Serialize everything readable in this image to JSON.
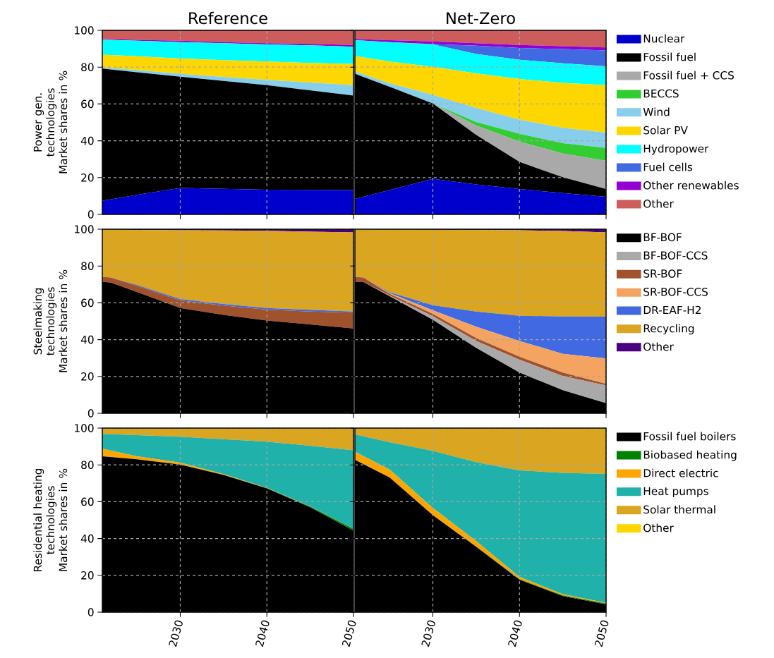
{
  "chart_data": [
    {
      "type": "area",
      "stacked": true,
      "title": "Reference",
      "ylabel": "Power gen. technologies Market shares in %",
      "x": [
        2021,
        2025,
        2030,
        2035,
        2040,
        2045,
        2050
      ],
      "xlim": [
        2021,
        2050
      ],
      "ylim": [
        0,
        100
      ],
      "xticks": [
        2030,
        2040,
        2050
      ],
      "yticks": [
        0,
        20,
        40,
        60,
        80,
        100
      ],
      "grid": true,
      "tick_labels": "y",
      "series": [
        {
          "color": "#0000cd",
          "values": [
            7.4,
            10.6,
            14.4,
            13.9,
            13.4,
            13.3,
            13.2
          ]
        },
        {
          "color": "#000000",
          "values": [
            71.8,
            66.6,
            60.4,
            58.6,
            56.8,
            54.1,
            51.4
          ]
        },
        {
          "color": "#87ceeb",
          "values": [
            0.7,
            1.2,
            1.6,
            2.2,
            2.9,
            4.2,
            5.6
          ]
        },
        {
          "color": "#ffd700",
          "values": [
            6.9,
            7.5,
            8.3,
            9.1,
            9.9,
            10.7,
            11.5
          ]
        },
        {
          "color": "#00ffff",
          "values": [
            8.1,
            8.4,
            8.9,
            9.2,
            9.3,
            9.6,
            9.4
          ]
        },
        {
          "color": "#9400d3",
          "values": [
            0.4,
            0.5,
            0.7,
            0.6,
            0.7,
            0.7,
            0.9
          ]
        },
        {
          "color": "#cd5c5c",
          "values": [
            4.7,
            5.2,
            5.7,
            6.4,
            7.0,
            7.4,
            8.0
          ]
        }
      ]
    },
    {
      "type": "area",
      "stacked": true,
      "title": "Net-Zero",
      "x": [
        2021,
        2025,
        2030,
        2035,
        2040,
        2045,
        2050
      ],
      "xlim": [
        2021,
        2050
      ],
      "ylim": [
        0,
        100
      ],
      "xticks": [
        2030,
        2040,
        2050
      ],
      "yticks": [
        0,
        20,
        40,
        60,
        80,
        100
      ],
      "grid": true,
      "tick_labels": false,
      "legend": "right",
      "series": [
        {
          "name": "Nuclear",
          "color": "#0000cd",
          "values": [
            8.4,
            13.2,
            19.3,
            16.3,
            13.8,
            11.6,
            9.6
          ]
        },
        {
          "name": "Fossil fuel",
          "color": "#000000",
          "values": [
            68.0,
            56.1,
            40.9,
            26.9,
            14.7,
            8.6,
            4.2
          ]
        },
        {
          "name": "Fossil fuel + CCS",
          "color": "#a9a9a9",
          "values": [
            0,
            0,
            0,
            5.1,
            11.1,
            12.8,
            15.3
          ]
        },
        {
          "name": "BECCS",
          "color": "#32cd32",
          "values": [
            0,
            0,
            0,
            1.9,
            4.2,
            5.7,
            7.0
          ]
        },
        {
          "name": "Wind",
          "color": "#87ceeb",
          "values": [
            1.3,
            2.0,
            4.7,
            7.7,
            7.7,
            8.3,
            8.3
          ]
        },
        {
          "name": "Solar PV",
          "color": "#ffd700",
          "values": [
            8.3,
            11.7,
            15.3,
            18.7,
            22.1,
            24.5,
            25.8
          ]
        },
        {
          "name": "Hydropower",
          "color": "#00ffff",
          "values": [
            8.6,
            10.6,
            12.1,
            10.6,
            10.4,
            10.6,
            10.3
          ]
        },
        {
          "name": "Fuel cells",
          "color": "#4169e1",
          "values": [
            0,
            0,
            0.2,
            4.5,
            6.4,
            7.7,
            8.6
          ]
        },
        {
          "name": "Other renewables",
          "color": "#9400d3",
          "values": [
            0.7,
            1.0,
            1.5,
            1.3,
            1.6,
            1.6,
            1.6
          ]
        },
        {
          "name": "Other",
          "color": "#cd5c5c",
          "values": [
            4.7,
            5.4,
            6.0,
            7.0,
            8.0,
            8.6,
            9.3
          ]
        }
      ]
    },
    {
      "type": "area",
      "stacked": true,
      "ylabel": "Steelmaking technologies Market shares in %",
      "x": [
        2021,
        2022,
        2025,
        2030,
        2035,
        2040,
        2045,
        2050
      ],
      "xlim": [
        2021,
        2050
      ],
      "ylim": [
        0,
        100
      ],
      "xticks": [
        2030,
        2040,
        2050
      ],
      "yticks": [
        0,
        20,
        40,
        60,
        80,
        100
      ],
      "grid": true,
      "tick_labels": "y",
      "series": [
        {
          "color": "#000000",
          "values": [
            71.5,
            71.0,
            65.9,
            57.2,
            53.4,
            50.4,
            48.3,
            46.1
          ]
        },
        {
          "color": "#a0522d",
          "values": [
            2.6,
            2.8,
            3.4,
            4.1,
            5.1,
            5.9,
            7.0,
            8.6
          ]
        },
        {
          "color": "#4169e1",
          "values": [
            0,
            0,
            0.4,
            0.8,
            0.9,
            0.9,
            0.9,
            0.6
          ]
        },
        {
          "color": "#daa520",
          "values": [
            25.8,
            26.0,
            29.9,
            37.3,
            39.9,
            41.9,
            42.5,
            43.0
          ]
        },
        {
          "color": "#4b0082",
          "values": [
            0.1,
            0.2,
            0.4,
            0.6,
            0.7,
            0.9,
            1.3,
            1.7
          ]
        }
      ]
    },
    {
      "type": "area",
      "stacked": true,
      "x": [
        2021,
        2022,
        2025,
        2030,
        2035,
        2040,
        2045,
        2050
      ],
      "xlim": [
        2021,
        2050
      ],
      "ylim": [
        0,
        100
      ],
      "xticks": [
        2030,
        2040,
        2050
      ],
      "yticks": [
        0,
        20,
        40,
        60,
        80,
        100
      ],
      "grid": true,
      "tick_labels": false,
      "legend": "right",
      "series": [
        {
          "name": "BF-BOF",
          "color": "#000000",
          "values": [
            71.5,
            71.3,
            63.6,
            50.8,
            35.5,
            22.1,
            12.5,
            5.5
          ]
        },
        {
          "name": "BF-BOF-CCS",
          "color": "#a9a9a9",
          "values": [
            0,
            0,
            0.4,
            1.9,
            3.8,
            7.0,
            7.7,
            9.6
          ]
        },
        {
          "name": "SR-BOF",
          "color": "#a0522d",
          "values": [
            2.6,
            2.5,
            0.9,
            1.3,
            1.6,
            1.6,
            1.9,
            0.9
          ]
        },
        {
          "name": "SR-BOF-CCS",
          "color": "#f4a460",
          "values": [
            0,
            0,
            0.4,
            1.9,
            6.1,
            8.6,
            10.2,
            13.8
          ]
        },
        {
          "name": "DR-EAF-H2",
          "color": "#4169e1",
          "values": [
            0,
            0,
            0.5,
            2.8,
            8.3,
            13.7,
            20.3,
            22.7
          ]
        },
        {
          "name": "Recycling",
          "color": "#daa520",
          "values": [
            25.8,
            26.1,
            34.0,
            41.0,
            44.3,
            46.4,
            46.4,
            45.8
          ]
        },
        {
          "name": "Other",
          "color": "#4b0082",
          "values": [
            0.1,
            0.1,
            0.2,
            0.3,
            0.4,
            0.6,
            1.0,
            1.7
          ]
        }
      ]
    },
    {
      "type": "area",
      "stacked": true,
      "ylabel": "Residential heating technologies Market shares in %",
      "x": [
        2021,
        2025,
        2030,
        2035,
        2040,
        2045,
        2050
      ],
      "xlim": [
        2021,
        2050
      ],
      "ylim": [
        0,
        100
      ],
      "xticks": [
        2030,
        2040,
        2050
      ],
      "yticks": [
        0,
        20,
        40,
        60,
        80,
        100
      ],
      "grid": true,
      "series": [
        {
          "color": "#000000",
          "values": [
            84.7,
            83.0,
            80.2,
            74.5,
            67.2,
            57.0,
            44.3
          ]
        },
        {
          "color": "#008000",
          "values": [
            0,
            0,
            0,
            0.1,
            0.2,
            0.4,
            1.0
          ]
        },
        {
          "color": "#ffa500",
          "values": [
            4.1,
            1.7,
            1.0,
            0.4,
            0.2,
            0.1,
            0.1
          ]
        },
        {
          "color": "#20b2aa",
          "values": [
            8.0,
            11.5,
            14.1,
            19.0,
            25.0,
            32.9,
            42.5
          ]
        },
        {
          "color": "#daa520",
          "values": [
            3.2,
            3.8,
            4.7,
            6.0,
            7.4,
            9.6,
            12.1
          ]
        }
      ]
    },
    {
      "type": "area",
      "stacked": true,
      "x": [
        2021,
        2025,
        2030,
        2035,
        2040,
        2045,
        2050
      ],
      "xlim": [
        2021,
        2050
      ],
      "ylim": [
        0,
        100
      ],
      "xticks": [
        2030,
        2040,
        2050
      ],
      "yticks": [
        0,
        20,
        40,
        60,
        80,
        100
      ],
      "grid": true,
      "tick_labels": "x",
      "legend": "right",
      "series": [
        {
          "name": "Fossil fuel boilers",
          "color": "#000000",
          "values": [
            82.8,
            73.2,
            52.7,
            35.5,
            17.6,
            8.7,
            4.2
          ]
        },
        {
          "name": "Biobased heating",
          "color": "#008000",
          "values": [
            0,
            0,
            0,
            0.1,
            0.3,
            0.4,
            0.5
          ]
        },
        {
          "name": "Direct electric",
          "color": "#ffa500",
          "values": [
            4.4,
            4.3,
            3.9,
            3.0,
            1.3,
            0.7,
            0.4
          ]
        },
        {
          "name": "Heat pumps",
          "color": "#20b2aa",
          "values": [
            9.4,
            14.8,
            31.0,
            42.9,
            57.8,
            65.9,
            70.0
          ]
        },
        {
          "name": "Solar thermal",
          "color": "#daa520",
          "values": [
            3.4,
            7.7,
            12.4,
            18.5,
            23.0,
            24.3,
            24.9
          ]
        },
        {
          "name": "Other",
          "color": "#ffd700",
          "values": [
            null,
            null,
            null,
            null,
            null,
            null,
            null
          ]
        }
      ]
    }
  ]
}
